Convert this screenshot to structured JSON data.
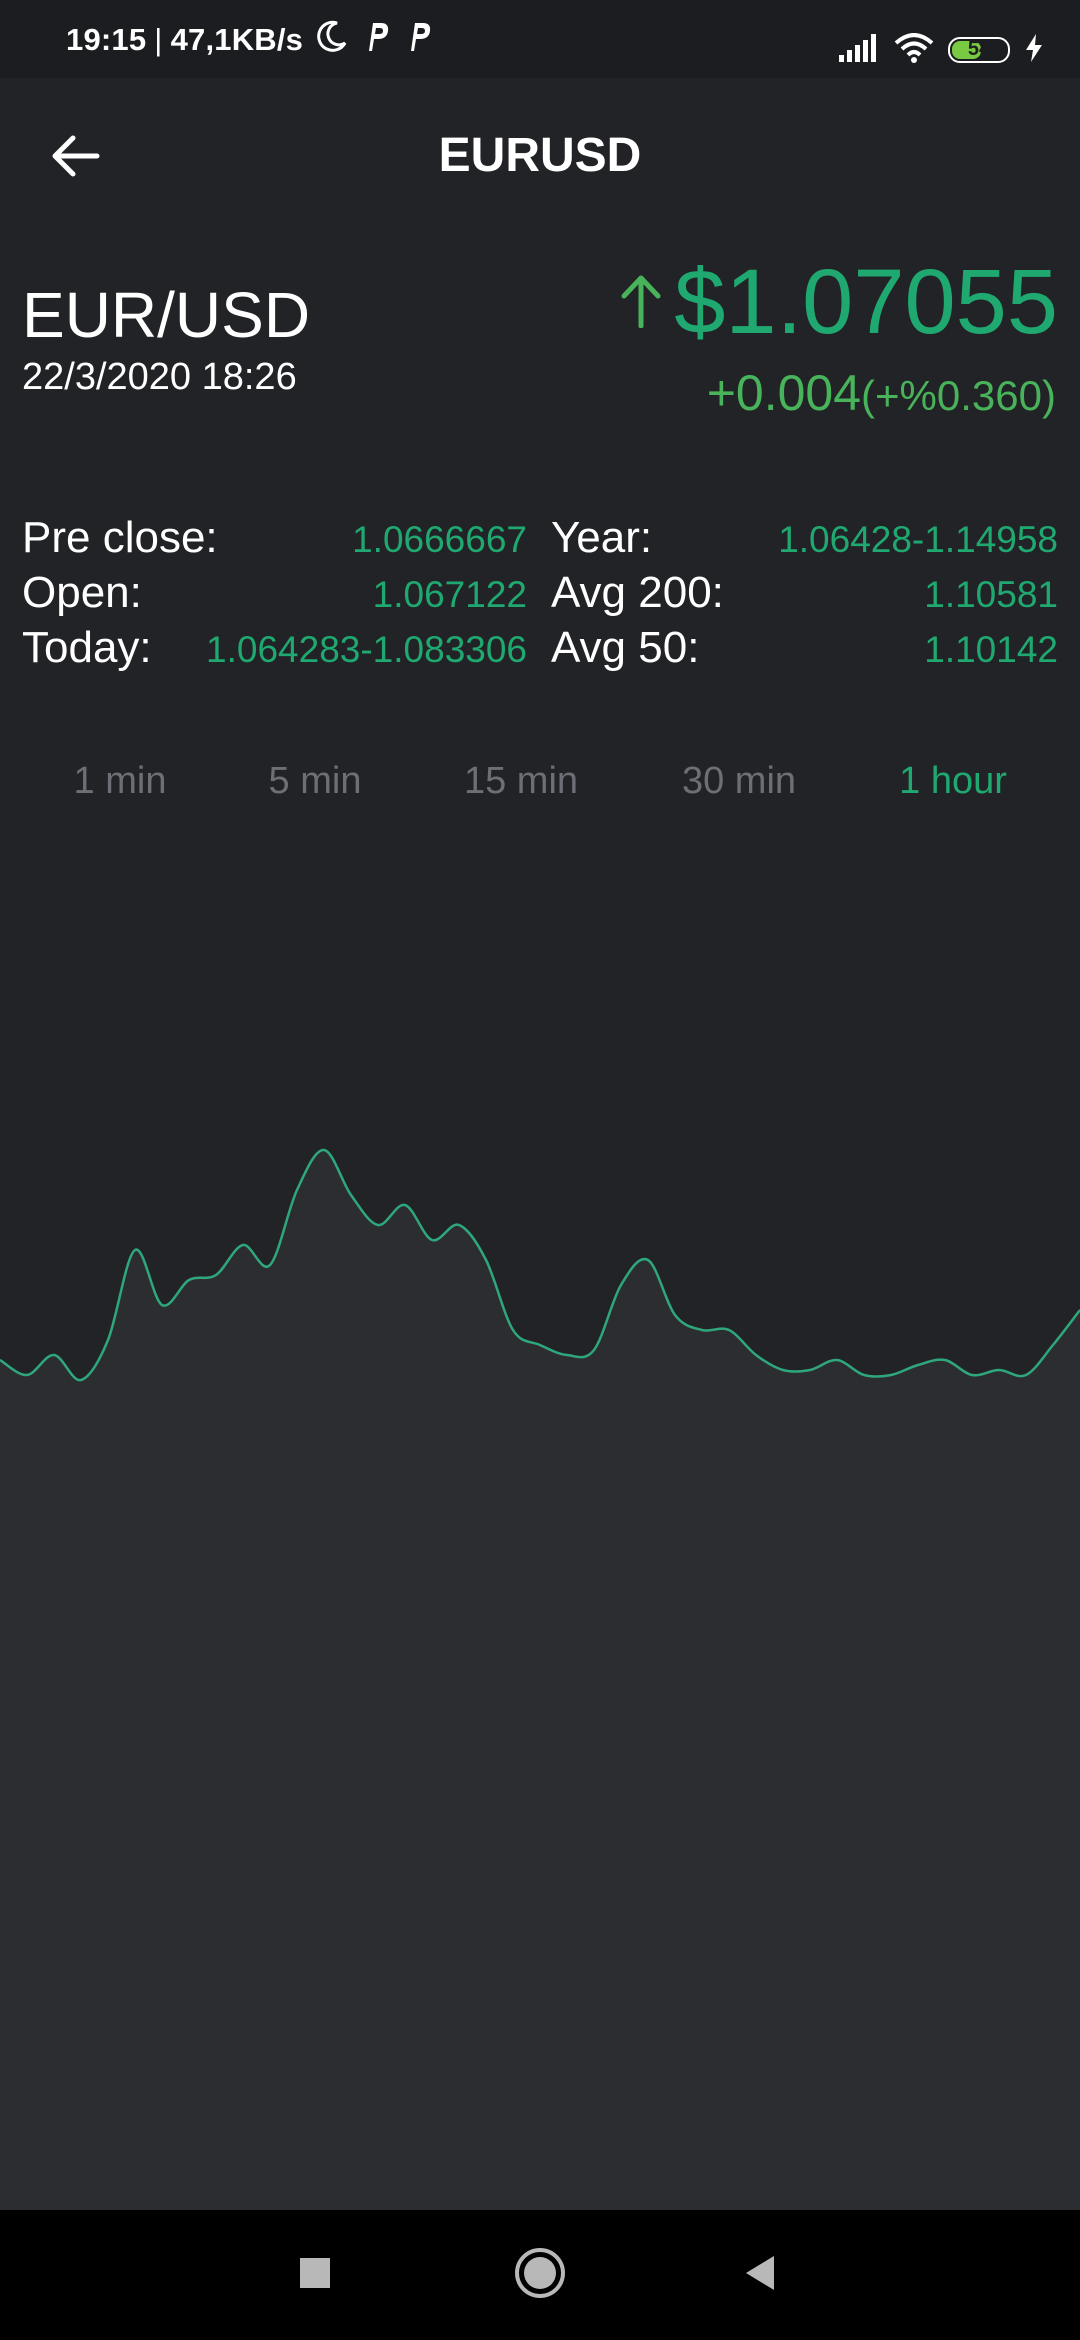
{
  "status_bar": {
    "time": "19:15",
    "separator": "|",
    "network_speed": "47,1KB/s",
    "battery_level": "54",
    "icons": [
      "moon-icon",
      "p-app-icon",
      "p-app-icon",
      "signal-icon",
      "wifi-icon",
      "battery-icon",
      "charging-icon"
    ]
  },
  "app_bar": {
    "title": "EURUSD",
    "back_icon": "arrow-left-icon"
  },
  "quote": {
    "pair": "EUR/USD",
    "datetime": "22/3/2020 18:26",
    "price": "$1.07055",
    "trend_icon": "arrow-up-icon",
    "change": "+0.004",
    "change_percent": "(+%0.360)"
  },
  "stats": {
    "rows": [
      {
        "left_label": "Pre close:",
        "left_value": "1.0666667",
        "right_label": "Year:",
        "right_value": "1.06428-1.14958"
      },
      {
        "left_label": "Open:",
        "left_value": "1.067122",
        "right_label": "Avg 200:",
        "right_value": "1.10581"
      },
      {
        "left_label": "Today:",
        "left_value": "1.064283-1.083306",
        "right_label": "Avg 50:",
        "right_value": "1.10142"
      }
    ]
  },
  "intervals": {
    "tabs": [
      "1 min",
      "5 min",
      "15 min",
      "30 min",
      "1 hour"
    ],
    "selected": "1 hour"
  },
  "colors": {
    "background": "#222326",
    "accent_green": "#1fa971",
    "change_green": "#48b35a",
    "inactive_tab": "#6c6f75",
    "chart_line": "#2fa77c",
    "chart_fill": "#2c2d31"
  },
  "chart_data": {
    "type": "area",
    "x": [
      0,
      1,
      2,
      3,
      4,
      5,
      6,
      7,
      8,
      9,
      10,
      11,
      12,
      13,
      14,
      15,
      16,
      17,
      18,
      19,
      20,
      21,
      22,
      23,
      24,
      25,
      26,
      27,
      28,
      29,
      30,
      31,
      32,
      33,
      34,
      35,
      36,
      37,
      38,
      39,
      40
    ],
    "values": [
      0.2,
      0.17,
      0.21,
      0.16,
      0.24,
      0.42,
      0.31,
      0.36,
      0.37,
      0.43,
      0.39,
      0.54,
      0.62,
      0.53,
      0.47,
      0.51,
      0.44,
      0.47,
      0.4,
      0.26,
      0.23,
      0.21,
      0.22,
      0.35,
      0.4,
      0.29,
      0.26,
      0.26,
      0.21,
      0.18,
      0.18,
      0.2,
      0.17,
      0.17,
      0.19,
      0.2,
      0.17,
      0.18,
      0.17,
      0.23,
      0.3
    ],
    "ylim": [
      0,
      1
    ],
    "grid": false,
    "legend": "none"
  }
}
